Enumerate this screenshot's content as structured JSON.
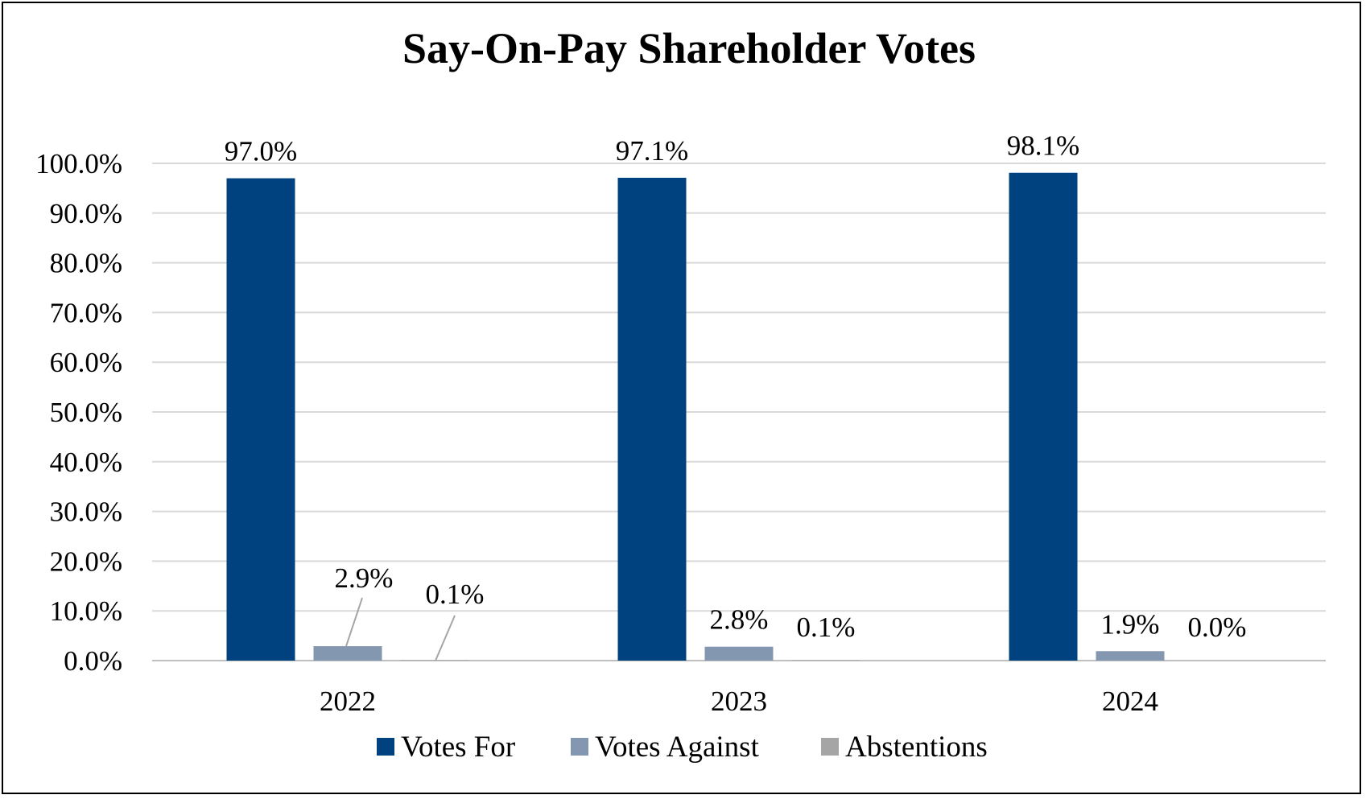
{
  "chart_data": {
    "type": "bar",
    "title": "Say-On-Pay Shareholder Votes",
    "categories": [
      "2022",
      "2023",
      "2024"
    ],
    "series": [
      {
        "name": "Votes For",
        "color": "#00427f",
        "values": [
          97.0,
          97.1,
          98.1
        ],
        "labels": [
          "97.0%",
          "97.1%",
          "98.1%"
        ]
      },
      {
        "name": "Votes Against",
        "color": "#8497b0",
        "values": [
          2.9,
          2.8,
          1.9
        ],
        "labels": [
          "2.9%",
          "2.8%",
          "1.9%"
        ]
      },
      {
        "name": "Abstentions",
        "color": "#a5a5a5",
        "values": [
          0.1,
          0.1,
          0.0
        ],
        "labels": [
          "0.1%",
          "0.1%",
          "0.0%"
        ]
      }
    ],
    "y_ticks": [
      "0.0%",
      "10.0%",
      "20.0%",
      "30.0%",
      "40.0%",
      "50.0%",
      "60.0%",
      "70.0%",
      "80.0%",
      "90.0%",
      "100.0%"
    ],
    "ylim": [
      0,
      100
    ],
    "xlabel": "",
    "ylabel": "",
    "grid": true,
    "legend": "bottom"
  }
}
